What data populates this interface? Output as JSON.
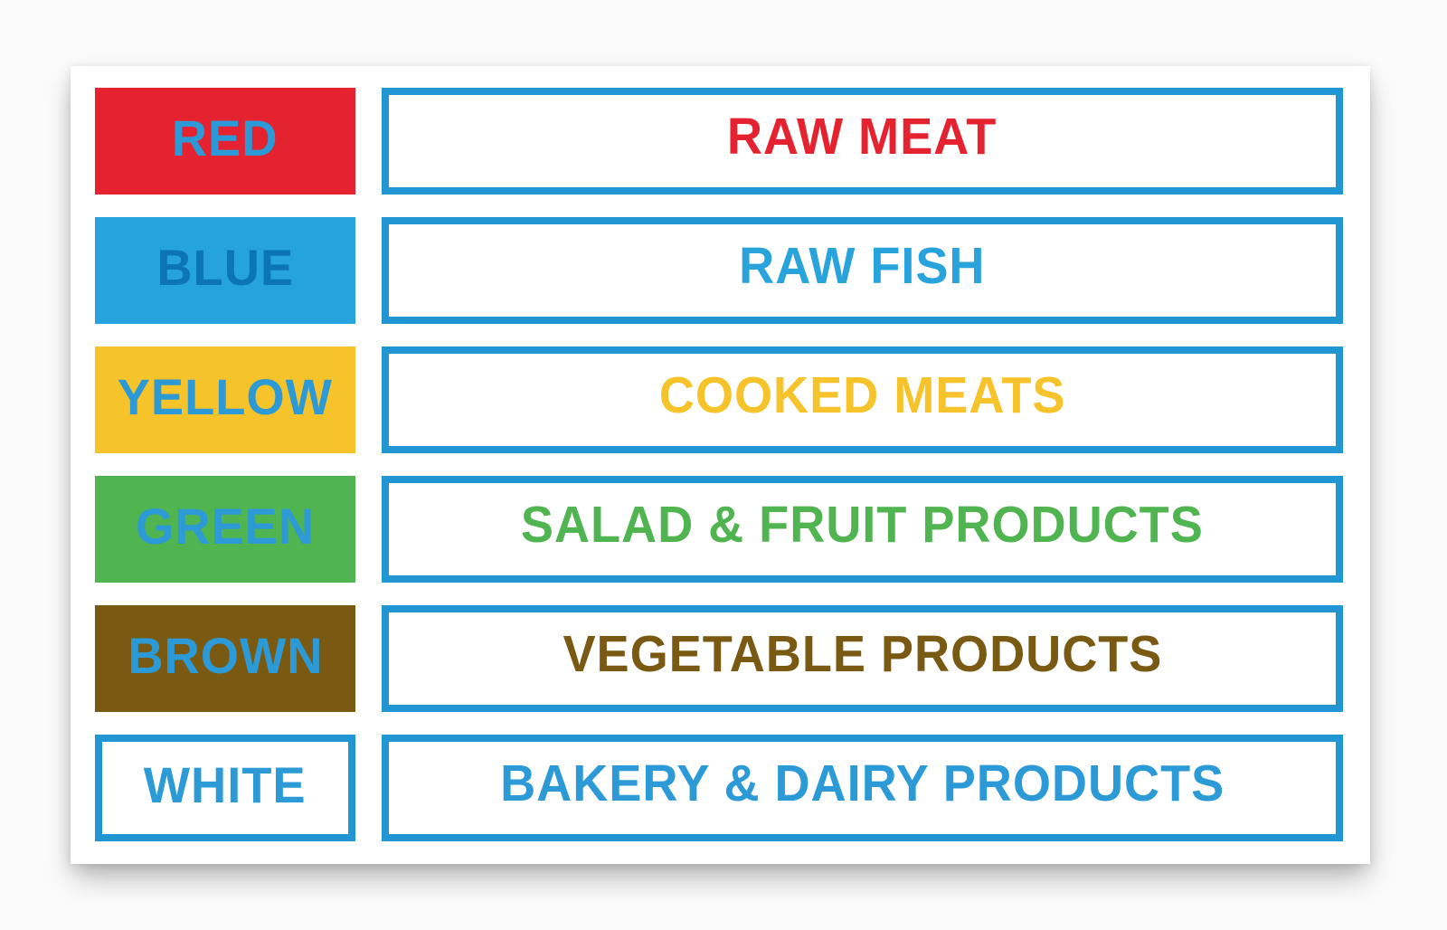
{
  "sign": {
    "colors": {
      "page_background": "#fbfbfb",
      "card_background": "#ffffff",
      "box_border_blue": "#2196d3"
    },
    "rows": [
      {
        "color_name": "RED",
        "category": "RAW MEAT",
        "swatch_color": "#e52330",
        "label_color": "#2b9ad6",
        "category_color": "#e52330"
      },
      {
        "color_name": "BLUE",
        "category": "RAW FISH",
        "swatch_color": "#25a3dd",
        "label_color": "#0e74b8",
        "category_color": "#29a3dc"
      },
      {
        "color_name": "YELLOW",
        "category": "COOKED MEATS",
        "swatch_color": "#f7c32a",
        "label_color": "#2b9ad6",
        "category_color": "#f7c32a"
      },
      {
        "color_name": "GREEN",
        "category": "SALAD & FRUIT PRODUCTS",
        "swatch_color": "#50b451",
        "label_color": "#2b9ad6",
        "category_color": "#50b451"
      },
      {
        "color_name": "BROWN",
        "category": "VEGETABLE PRODUCTS",
        "swatch_color": "#7a5a13",
        "label_color": "#2b9ad6",
        "category_color": "#7a5a13"
      },
      {
        "color_name": "WHITE",
        "category": "BAKERY & DAIRY PRODUCTS",
        "swatch_color": "#ffffff",
        "label_color": "#2b9ad6",
        "category_color": "#2b9ad6"
      }
    ]
  }
}
